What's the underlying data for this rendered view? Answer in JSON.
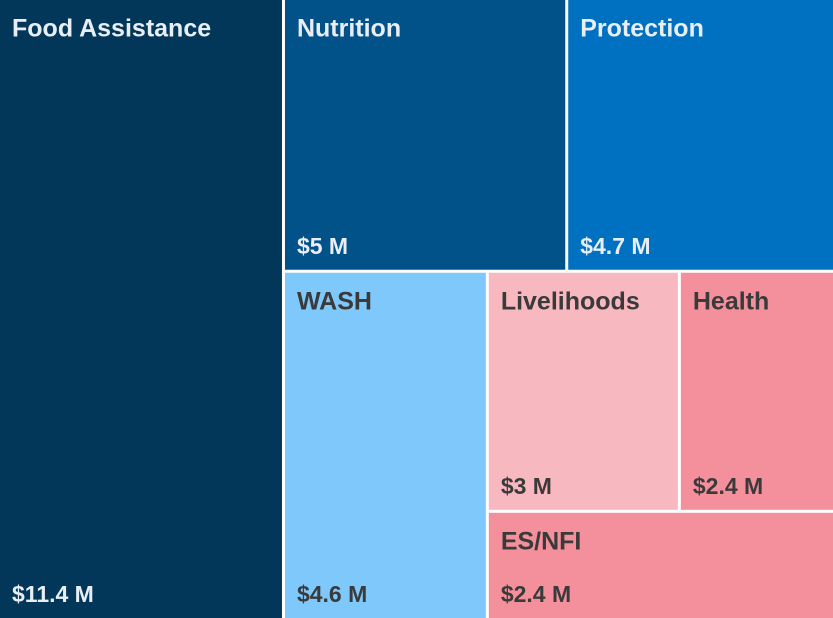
{
  "chart_data": {
    "type": "treemap",
    "categories": [
      "Food Assistance",
      "Nutrition",
      "Protection",
      "WASH",
      "Livelihoods",
      "Health",
      "ES/NFI"
    ],
    "values": [
      11.4,
      5,
      4.7,
      4.6,
      3,
      2.4,
      2.4
    ],
    "value_labels": [
      "$11.4 M",
      "$5 M",
      "$4.7 M",
      "$4.6 M",
      "$3 M",
      "$2.4 M",
      "$2.4 M"
    ],
    "colors": [
      "#03375a",
      "#02528a",
      "#0070c0",
      "#7ec8fc",
      "#f8b8c0",
      "#f4909c",
      "#f4909c"
    ],
    "text_colors": [
      "#e8eef4",
      "#e8eef4",
      "#e8eef4",
      "#3a3a3a",
      "#3a3a3a",
      "#3a3a3a",
      "#3a3a3a"
    ]
  }
}
